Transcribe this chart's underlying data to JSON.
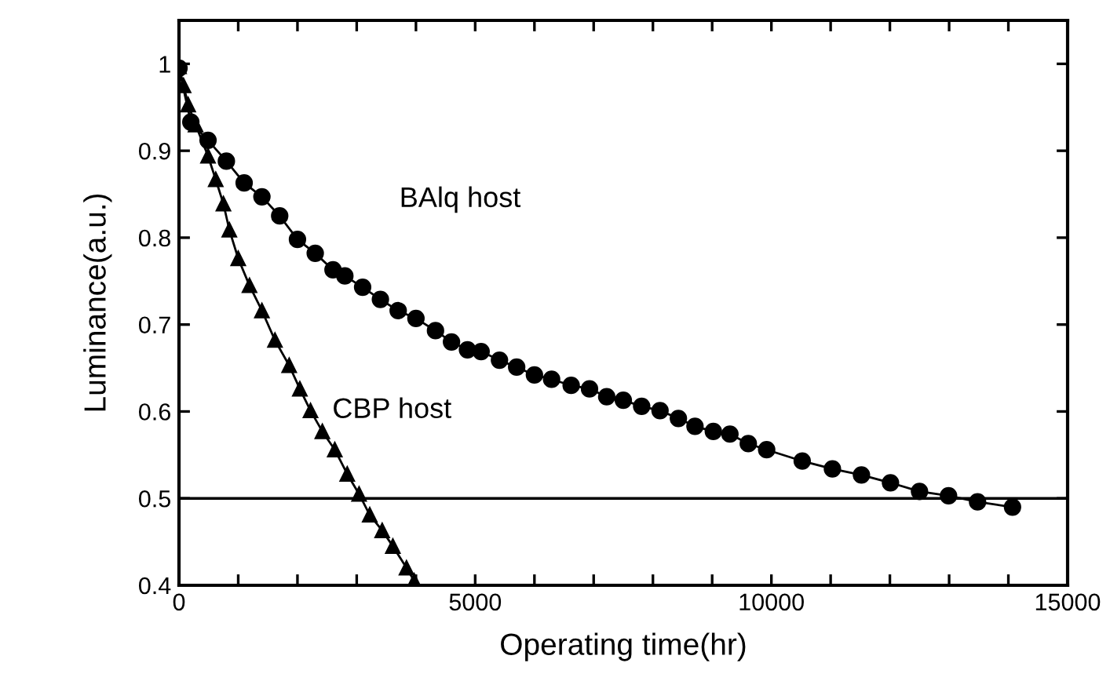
{
  "chart_data": {
    "type": "line",
    "xlabel": "Operating time(hr)",
    "ylabel": "Luminance(a.u.)",
    "xlim": [
      0,
      15000
    ],
    "ylim": [
      0.4,
      1.05
    ],
    "xticks": [
      0,
      {
        "value": 1000,
        "label": null
      },
      {
        "value": 2000,
        "label": null
      },
      {
        "value": 3000,
        "label": null
      },
      {
        "value": 4000,
        "label": null
      },
      5000,
      {
        "value": 6000,
        "label": null
      },
      {
        "value": 7000,
        "label": null
      },
      {
        "value": 8000,
        "label": null
      },
      {
        "value": 9000,
        "label": null
      },
      10000,
      {
        "value": 11000,
        "label": null
      },
      {
        "value": 12000,
        "label": null
      },
      {
        "value": 13000,
        "label": null
      },
      {
        "value": 14000,
        "label": null
      },
      15000
    ],
    "yticks": [
      0.4,
      0.5,
      0.6,
      0.7,
      0.8,
      0.9,
      1
    ],
    "grid": false,
    "legend": false,
    "line_style": "solid",
    "ref_lines": [
      {
        "axis": "y",
        "value": 0.5,
        "color": "#000000",
        "line_style": "solid"
      }
    ],
    "series": [
      {
        "name": "BAlq host",
        "color": "#000000",
        "marker": "circle",
        "x": [
          0,
          200,
          490,
          800,
          1100,
          1400,
          1700,
          2000,
          2300,
          2600,
          2800,
          3100,
          3400,
          3700,
          4000,
          4330,
          4600,
          4870,
          5100,
          5410,
          5700,
          6000,
          6290,
          6620,
          6930,
          7220,
          7500,
          7810,
          8120,
          8430,
          8710,
          9020,
          9300,
          9610,
          9920,
          10520,
          11030,
          11520,
          12010,
          12500,
          12990,
          13480,
          14070
        ],
        "values": [
          0.995,
          0.933,
          0.912,
          0.888,
          0.863,
          0.847,
          0.825,
          0.798,
          0.782,
          0.763,
          0.756,
          0.743,
          0.729,
          0.716,
          0.707,
          0.693,
          0.68,
          0.671,
          0.669,
          0.659,
          0.651,
          0.642,
          0.637,
          0.63,
          0.626,
          0.617,
          0.613,
          0.606,
          0.601,
          0.592,
          0.583,
          0.577,
          0.574,
          0.563,
          0.556,
          0.543,
          0.534,
          0.527,
          0.518,
          0.508,
          0.503,
          0.496,
          0.49
        ]
      },
      {
        "name": "CBP host",
        "color": "#000000",
        "marker": "triangle",
        "x": [
          0,
          77,
          155,
          280,
          490,
          620,
          750,
          850,
          1000,
          1190,
          1400,
          1620,
          1860,
          2040,
          2220,
          2420,
          2630,
          2840,
          3040,
          3220,
          3430,
          3610,
          3840,
          3970
        ],
        "values": [
          0.997,
          0.975,
          0.953,
          0.93,
          0.894,
          0.867,
          0.839,
          0.809,
          0.776,
          0.745,
          0.716,
          0.682,
          0.653,
          0.626,
          0.601,
          0.577,
          0.556,
          0.528,
          0.505,
          0.481,
          0.463,
          0.445,
          0.42,
          0.405
        ]
      }
    ]
  }
}
